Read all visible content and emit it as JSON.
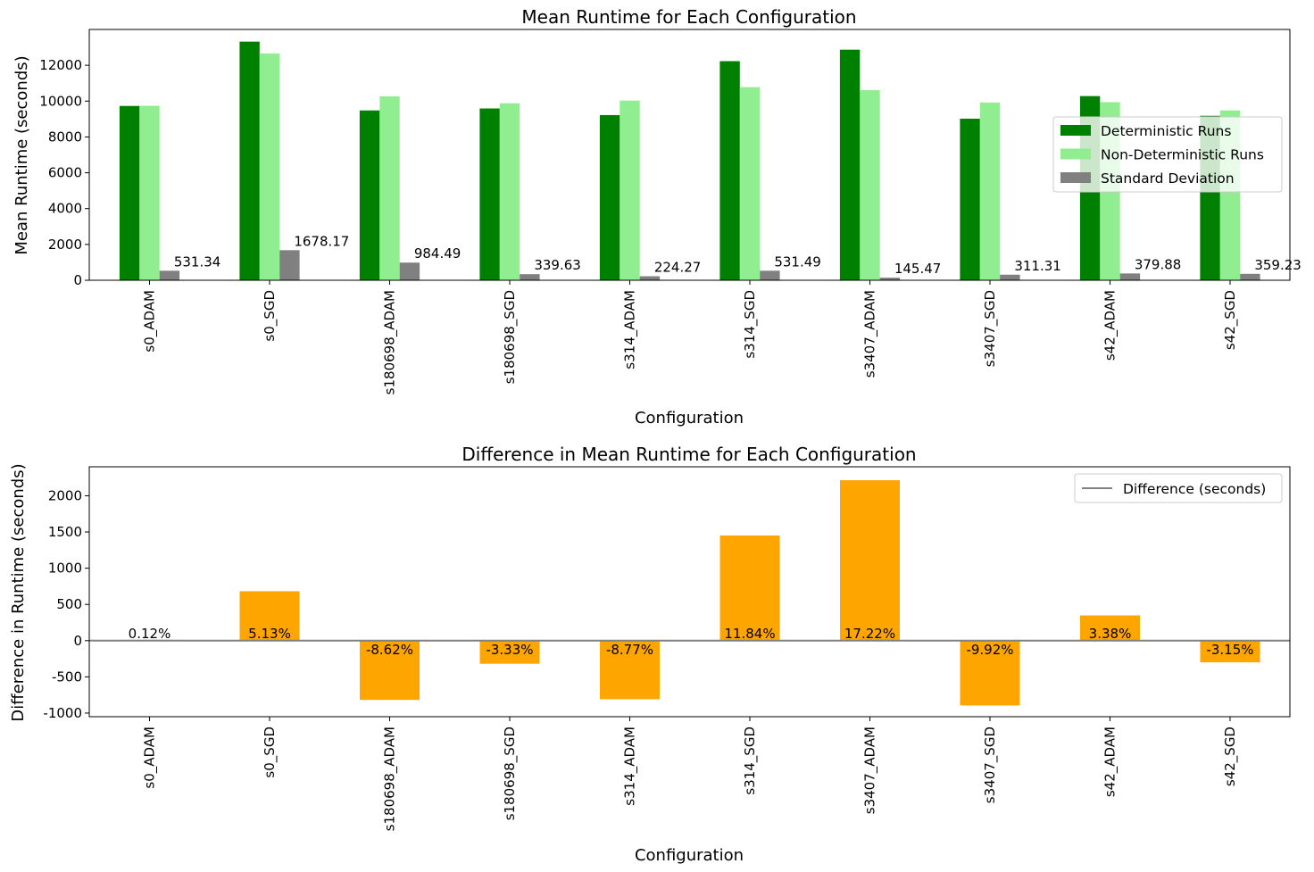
{
  "chart_data": [
    {
      "type": "bar",
      "title": "Mean Runtime for Each Configuration",
      "xlabel": "Configuration",
      "ylabel": "Mean Runtime (seconds)",
      "ylim": [
        0,
        14000
      ],
      "yticks": [
        0,
        2000,
        4000,
        6000,
        8000,
        10000,
        12000
      ],
      "categories": [
        "s0_ADAM",
        "s0_SGD",
        "s180698_ADAM",
        "s180698_SGD",
        "s314_ADAM",
        "s314_SGD",
        "s3407_ADAM",
        "s3407_SGD",
        "s42_ADAM",
        "s42_SGD"
      ],
      "series": [
        {
          "name": "Deterministic Runs",
          "color": "#008000",
          "values": [
            9730,
            13320,
            9480,
            9590,
            9220,
            12230,
            12870,
            9020,
            10280,
            9180
          ]
        },
        {
          "name": "Non-Deterministic Runs",
          "color": "#90ee90",
          "values": [
            9740,
            12660,
            10270,
            9880,
            10030,
            10780,
            10610,
            9920,
            9940,
            9480
          ]
        },
        {
          "name": "Standard Deviation",
          "color": "#808080",
          "values": [
            531.34,
            1678.17,
            984.49,
            339.63,
            224.27,
            531.49,
            145.47,
            311.31,
            379.88,
            359.23
          ]
        }
      ],
      "data_labels": [
        "531.34",
        "1678.17",
        "984.49",
        "339.63",
        "224.27",
        "531.49",
        "145.47",
        "311.31",
        "379.88",
        "359.23"
      ],
      "legend": "center-right",
      "grid": false
    },
    {
      "type": "bar",
      "title": "Difference in Mean Runtime for Each Configuration",
      "xlabel": "Configuration",
      "ylabel": "Difference in Runtime (seconds)",
      "ylim": [
        -1050,
        2400
      ],
      "yticks": [
        -1000,
        -500,
        0,
        500,
        1000,
        1500,
        2000
      ],
      "categories": [
        "s0_ADAM",
        "s0_SGD",
        "s180698_ADAM",
        "s180698_SGD",
        "s314_ADAM",
        "s314_SGD",
        "s3407_ADAM",
        "s3407_SGD",
        "s42_ADAM",
        "s42_SGD"
      ],
      "series": [
        {
          "color": "#ffa500",
          "values": [
            11,
            682,
            -818,
            -319,
            -809,
            1452,
            2215,
            -895,
            348,
            -299
          ]
        }
      ],
      "data_labels": [
        "0.12%",
        "5.13%",
        "-8.62%",
        "-3.33%",
        "-8.77%",
        "11.84%",
        "17.22%",
        "-9.92%",
        "3.38%",
        "-3.15%"
      ],
      "reference_line": {
        "name": "Difference (seconds)",
        "value": 0,
        "color": "#808080"
      },
      "legend": "top-right",
      "grid": false
    }
  ]
}
